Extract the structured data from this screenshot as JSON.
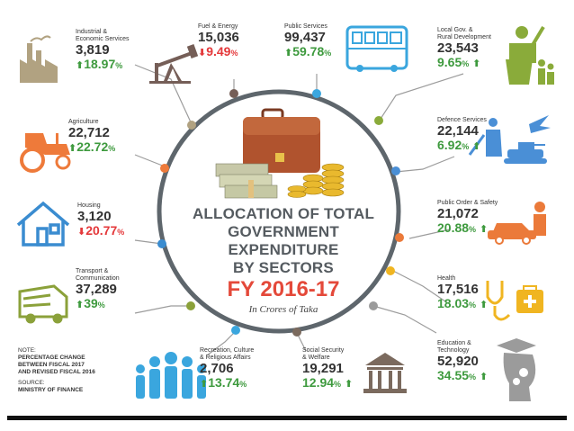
{
  "title": {
    "line1": "ALLOCATION OF TOTAL",
    "line2": "GOVERNMENT EXPENDITURE",
    "line3": "BY SECTORS",
    "fy": "FY 2016-17",
    "unit": "In Crores of Taka"
  },
  "note": {
    "heading": "NOTE:",
    "line1": "PERCENTAGE CHANGE",
    "line2": "BETWEEN FISCAL 2017",
    "line3": "AND REVISED FISCAL 2016",
    "source_label": "SOURCE:",
    "source": "MINISTRY OF FINANCE"
  },
  "colors": {
    "up": "#3e9a3e",
    "down": "#e4383a",
    "ring": "#5e666c"
  },
  "sectors": [
    {
      "id": "industrial",
      "label": [
        "Industrial &",
        "Economic Services"
      ],
      "value": "3,819",
      "change": "18.97",
      "dir": "up",
      "color": "#b1a281",
      "icon": "factory-icon"
    },
    {
      "id": "fuel",
      "label": [
        "Fuel & Energy"
      ],
      "value": "15,036",
      "change": "9.49",
      "dir": "down",
      "color": "#755e57",
      "icon": "oil-pump-icon"
    },
    {
      "id": "public",
      "label": [
        "Public Services"
      ],
      "value": "99,437",
      "change": "59.78",
      "dir": "up",
      "color": "#3aa6de",
      "icon": "bus-icon"
    },
    {
      "id": "localgov",
      "label": [
        "Local Gov. &",
        "Rural Development"
      ],
      "value": "23,543",
      "change": "9.65",
      "dir": "up",
      "color": "#8aab3a",
      "icon": "speaker-podium-icon"
    },
    {
      "id": "agriculture",
      "label": [
        "Agriculture"
      ],
      "value": "22,712",
      "change": "22.72",
      "dir": "up",
      "color": "#ee7a3a",
      "icon": "tractor-icon"
    },
    {
      "id": "defence",
      "label": [
        "Defence Services"
      ],
      "value": "22,144",
      "change": "6.92",
      "dir": "up",
      "color": "#4a8fd6",
      "icon": "soldier-jet-tank-icon"
    },
    {
      "id": "housing",
      "label": [
        "Housing"
      ],
      "value": "3,120",
      "change": "20.77",
      "dir": "down",
      "color": "#3a8cd0",
      "icon": "house-icon"
    },
    {
      "id": "order",
      "label": [
        "Public Order & Safety"
      ],
      "value": "21,072",
      "change": "20.88",
      "dir": "up",
      "color": "#eb7a3a",
      "icon": "police-car-icon"
    },
    {
      "id": "health",
      "label": [
        "Health"
      ],
      "value": "17,516",
      "change": "18.03",
      "dir": "up",
      "color": "#f0b521",
      "icon": "stethoscope-firstaid-icon"
    },
    {
      "id": "transport",
      "label": [
        "Transport &",
        "Communication"
      ],
      "value": "37,289",
      "change": "39",
      "dir": "up",
      "color": "#8ba13a",
      "icon": "truck-icon"
    },
    {
      "id": "education",
      "label": [
        "Education &",
        "Technology"
      ],
      "value": "52,920",
      "change": "34.55",
      "dir": "up",
      "color": "#9b9b9b",
      "icon": "graduate-head-icon"
    },
    {
      "id": "recreation",
      "label": [
        "Recreation, Culture",
        "& Religious Affairs"
      ],
      "value": "2,706",
      "change": "13.74",
      "dir": "up",
      "color": "#3aa6de",
      "icon": "crowd-icon"
    },
    {
      "id": "social",
      "label": [
        "Social Security",
        "& Welfare"
      ],
      "value": "19,291",
      "change": "12.94",
      "dir": "up",
      "color": "#7b6a5e",
      "icon": "bank-icon"
    }
  ]
}
